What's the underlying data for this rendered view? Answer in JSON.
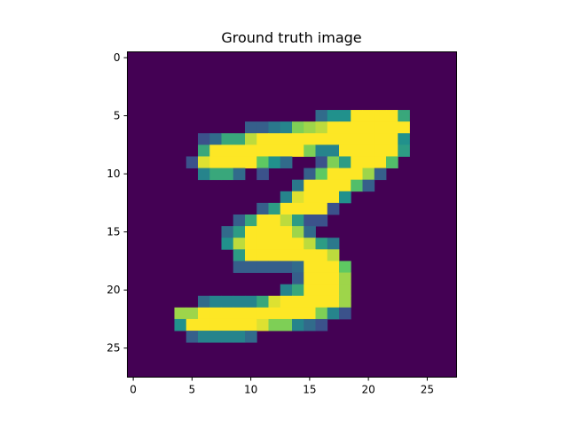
{
  "chart_data": {
    "type": "heatmap",
    "title": "Ground truth image",
    "xlabel": "",
    "ylabel": "",
    "colormap": "viridis",
    "value_range": [
      0,
      1
    ],
    "rows": 28,
    "cols": 28,
    "xlim": [
      -0.5,
      27.5
    ],
    "ylim": [
      27.5,
      -0.5
    ],
    "x_ticks": [
      0,
      5,
      10,
      15,
      20,
      25
    ],
    "y_ticks": [
      0,
      5,
      10,
      15,
      20,
      25
    ],
    "x_tick_labels": [
      "0",
      "5",
      "10",
      "15",
      "20",
      "25"
    ],
    "y_tick_labels": [
      "0",
      "5",
      "10",
      "15",
      "20",
      "25"
    ],
    "pixels": [
      [
        5,
        16,
        0.35
      ],
      [
        5,
        17,
        0.5
      ],
      [
        5,
        18,
        0.5
      ],
      [
        5,
        19,
        1
      ],
      [
        5,
        20,
        1
      ],
      [
        5,
        21,
        1
      ],
      [
        5,
        22,
        1
      ],
      [
        5,
        23,
        0.6
      ],
      [
        6,
        10,
        0.3
      ],
      [
        6,
        11,
        0.3
      ],
      [
        6,
        12,
        0.4
      ],
      [
        6,
        13,
        0.45
      ],
      [
        6,
        14,
        0.8
      ],
      [
        6,
        15,
        0.85
      ],
      [
        6,
        16,
        0.9
      ],
      [
        6,
        17,
        1
      ],
      [
        6,
        18,
        1
      ],
      [
        6,
        19,
        1
      ],
      [
        6,
        20,
        1
      ],
      [
        6,
        21,
        1
      ],
      [
        6,
        22,
        1
      ],
      [
        6,
        23,
        1
      ],
      [
        7,
        6,
        0.25
      ],
      [
        7,
        7,
        0.35
      ],
      [
        7,
        8,
        0.6
      ],
      [
        7,
        9,
        0.6
      ],
      [
        7,
        10,
        0.9
      ],
      [
        7,
        11,
        1
      ],
      [
        7,
        12,
        1
      ],
      [
        7,
        13,
        1
      ],
      [
        7,
        14,
        1
      ],
      [
        7,
        15,
        1
      ],
      [
        7,
        16,
        1
      ],
      [
        7,
        17,
        1
      ],
      [
        7,
        18,
        1
      ],
      [
        7,
        19,
        1
      ],
      [
        7,
        20,
        1
      ],
      [
        7,
        21,
        1
      ],
      [
        7,
        22,
        1
      ],
      [
        7,
        23,
        0.5
      ],
      [
        8,
        6,
        0.6
      ],
      [
        8,
        7,
        1
      ],
      [
        8,
        8,
        1
      ],
      [
        8,
        9,
        1
      ],
      [
        8,
        10,
        1
      ],
      [
        8,
        11,
        1
      ],
      [
        8,
        12,
        1
      ],
      [
        8,
        13,
        1
      ],
      [
        8,
        14,
        1
      ],
      [
        8,
        15,
        0.8
      ],
      [
        8,
        16,
        0.45
      ],
      [
        8,
        17,
        0.45
      ],
      [
        8,
        18,
        1
      ],
      [
        8,
        19,
        1
      ],
      [
        8,
        20,
        1
      ],
      [
        8,
        21,
        1
      ],
      [
        8,
        22,
        1
      ],
      [
        8,
        23,
        0.55
      ],
      [
        9,
        5,
        0.25
      ],
      [
        9,
        6,
        0.95
      ],
      [
        9,
        7,
        1
      ],
      [
        9,
        8,
        1
      ],
      [
        9,
        9,
        1
      ],
      [
        9,
        10,
        1
      ],
      [
        9,
        11,
        0.75
      ],
      [
        9,
        12,
        0.5
      ],
      [
        9,
        13,
        0.35
      ],
      [
        9,
        16,
        0.25
      ],
      [
        9,
        17,
        0.8
      ],
      [
        9,
        18,
        0.55
      ],
      [
        9,
        19,
        1
      ],
      [
        9,
        20,
        1
      ],
      [
        9,
        21,
        1
      ],
      [
        9,
        22,
        0.7
      ],
      [
        10,
        6,
        0.45
      ],
      [
        10,
        7,
        0.6
      ],
      [
        10,
        8,
        0.6
      ],
      [
        10,
        9,
        0.35
      ],
      [
        10,
        11,
        0.25
      ],
      [
        10,
        15,
        0.3
      ],
      [
        10,
        16,
        0.75
      ],
      [
        10,
        17,
        1
      ],
      [
        10,
        18,
        1
      ],
      [
        10,
        19,
        1
      ],
      [
        10,
        20,
        0.85
      ],
      [
        10,
        21,
        0.3
      ],
      [
        11,
        14,
        0.4
      ],
      [
        11,
        15,
        1
      ],
      [
        11,
        16,
        1
      ],
      [
        11,
        17,
        1
      ],
      [
        11,
        18,
        1
      ],
      [
        11,
        19,
        0.7
      ],
      [
        11,
        20,
        0.3
      ],
      [
        12,
        13,
        0.45
      ],
      [
        12,
        14,
        0.95
      ],
      [
        12,
        15,
        1
      ],
      [
        12,
        16,
        1
      ],
      [
        12,
        17,
        1
      ],
      [
        12,
        18,
        0.5
      ],
      [
        13,
        11,
        0.3
      ],
      [
        13,
        12,
        0.55
      ],
      [
        13,
        13,
        1
      ],
      [
        13,
        14,
        1
      ],
      [
        13,
        15,
        1
      ],
      [
        13,
        16,
        1
      ],
      [
        13,
        17,
        0.25
      ],
      [
        14,
        9,
        0.3
      ],
      [
        14,
        10,
        0.6
      ],
      [
        14,
        11,
        1
      ],
      [
        14,
        12,
        1
      ],
      [
        14,
        13,
        0.9
      ],
      [
        14,
        14,
        0.55
      ],
      [
        14,
        15,
        0.25
      ],
      [
        14,
        16,
        0.25
      ],
      [
        15,
        8,
        0.35
      ],
      [
        15,
        9,
        0.55
      ],
      [
        15,
        10,
        1
      ],
      [
        15,
        11,
        1
      ],
      [
        15,
        12,
        1
      ],
      [
        15,
        13,
        1
      ],
      [
        15,
        14,
        0.85
      ],
      [
        15,
        15,
        0.35
      ],
      [
        16,
        8,
        0.5
      ],
      [
        16,
        9,
        0.9
      ],
      [
        16,
        10,
        1
      ],
      [
        16,
        11,
        1
      ],
      [
        16,
        12,
        1
      ],
      [
        16,
        13,
        1
      ],
      [
        16,
        14,
        1
      ],
      [
        16,
        15,
        0.9
      ],
      [
        16,
        16,
        0.55
      ],
      [
        16,
        17,
        0.4
      ],
      [
        17,
        9,
        0.55
      ],
      [
        17,
        10,
        1
      ],
      [
        17,
        11,
        1
      ],
      [
        17,
        12,
        1
      ],
      [
        17,
        13,
        1
      ],
      [
        17,
        14,
        1
      ],
      [
        17,
        15,
        1
      ],
      [
        17,
        16,
        1
      ],
      [
        17,
        17,
        0.9
      ],
      [
        18,
        9,
        0.3
      ],
      [
        18,
        10,
        0.3
      ],
      [
        18,
        11,
        0.3
      ],
      [
        18,
        12,
        0.3
      ],
      [
        18,
        13,
        0.3
      ],
      [
        18,
        14,
        0.35
      ],
      [
        18,
        15,
        1
      ],
      [
        18,
        16,
        1
      ],
      [
        18,
        17,
        1
      ],
      [
        18,
        18,
        0.75
      ],
      [
        19,
        14,
        0.3
      ],
      [
        19,
        15,
        1
      ],
      [
        19,
        16,
        1
      ],
      [
        19,
        17,
        1
      ],
      [
        19,
        18,
        0.85
      ],
      [
        20,
        13,
        0.45
      ],
      [
        20,
        14,
        0.6
      ],
      [
        20,
        15,
        1
      ],
      [
        20,
        16,
        1
      ],
      [
        20,
        17,
        1
      ],
      [
        20,
        18,
        0.85
      ],
      [
        21,
        6,
        0.35
      ],
      [
        21,
        7,
        0.45
      ],
      [
        21,
        8,
        0.45
      ],
      [
        21,
        9,
        0.45
      ],
      [
        21,
        10,
        0.45
      ],
      [
        21,
        11,
        0.6
      ],
      [
        21,
        12,
        0.95
      ],
      [
        21,
        13,
        1
      ],
      [
        21,
        14,
        1
      ],
      [
        21,
        15,
        1
      ],
      [
        21,
        16,
        1
      ],
      [
        21,
        17,
        1
      ],
      [
        21,
        18,
        0.85
      ],
      [
        22,
        4,
        0.85
      ],
      [
        22,
        5,
        0.85
      ],
      [
        22,
        6,
        1
      ],
      [
        22,
        7,
        1
      ],
      [
        22,
        8,
        1
      ],
      [
        22,
        9,
        1
      ],
      [
        22,
        10,
        1
      ],
      [
        22,
        11,
        1
      ],
      [
        22,
        12,
        1
      ],
      [
        22,
        13,
        1
      ],
      [
        22,
        14,
        1
      ],
      [
        22,
        15,
        1
      ],
      [
        22,
        16,
        0.8
      ],
      [
        22,
        17,
        0.45
      ],
      [
        22,
        18,
        0.25
      ],
      [
        23,
        4,
        0.5
      ],
      [
        23,
        5,
        1
      ],
      [
        23,
        6,
        1
      ],
      [
        23,
        7,
        1
      ],
      [
        23,
        8,
        1
      ],
      [
        23,
        9,
        1
      ],
      [
        23,
        10,
        1
      ],
      [
        23,
        11,
        0.95
      ],
      [
        23,
        12,
        0.8
      ],
      [
        23,
        13,
        0.8
      ],
      [
        23,
        14,
        0.45
      ],
      [
        23,
        15,
        0.35
      ],
      [
        23,
        16,
        0.25
      ],
      [
        24,
        5,
        0.3
      ],
      [
        24,
        6,
        0.45
      ],
      [
        24,
        7,
        0.45
      ],
      [
        24,
        8,
        0.45
      ],
      [
        24,
        9,
        0.45
      ],
      [
        24,
        10,
        0.35
      ]
    ]
  }
}
